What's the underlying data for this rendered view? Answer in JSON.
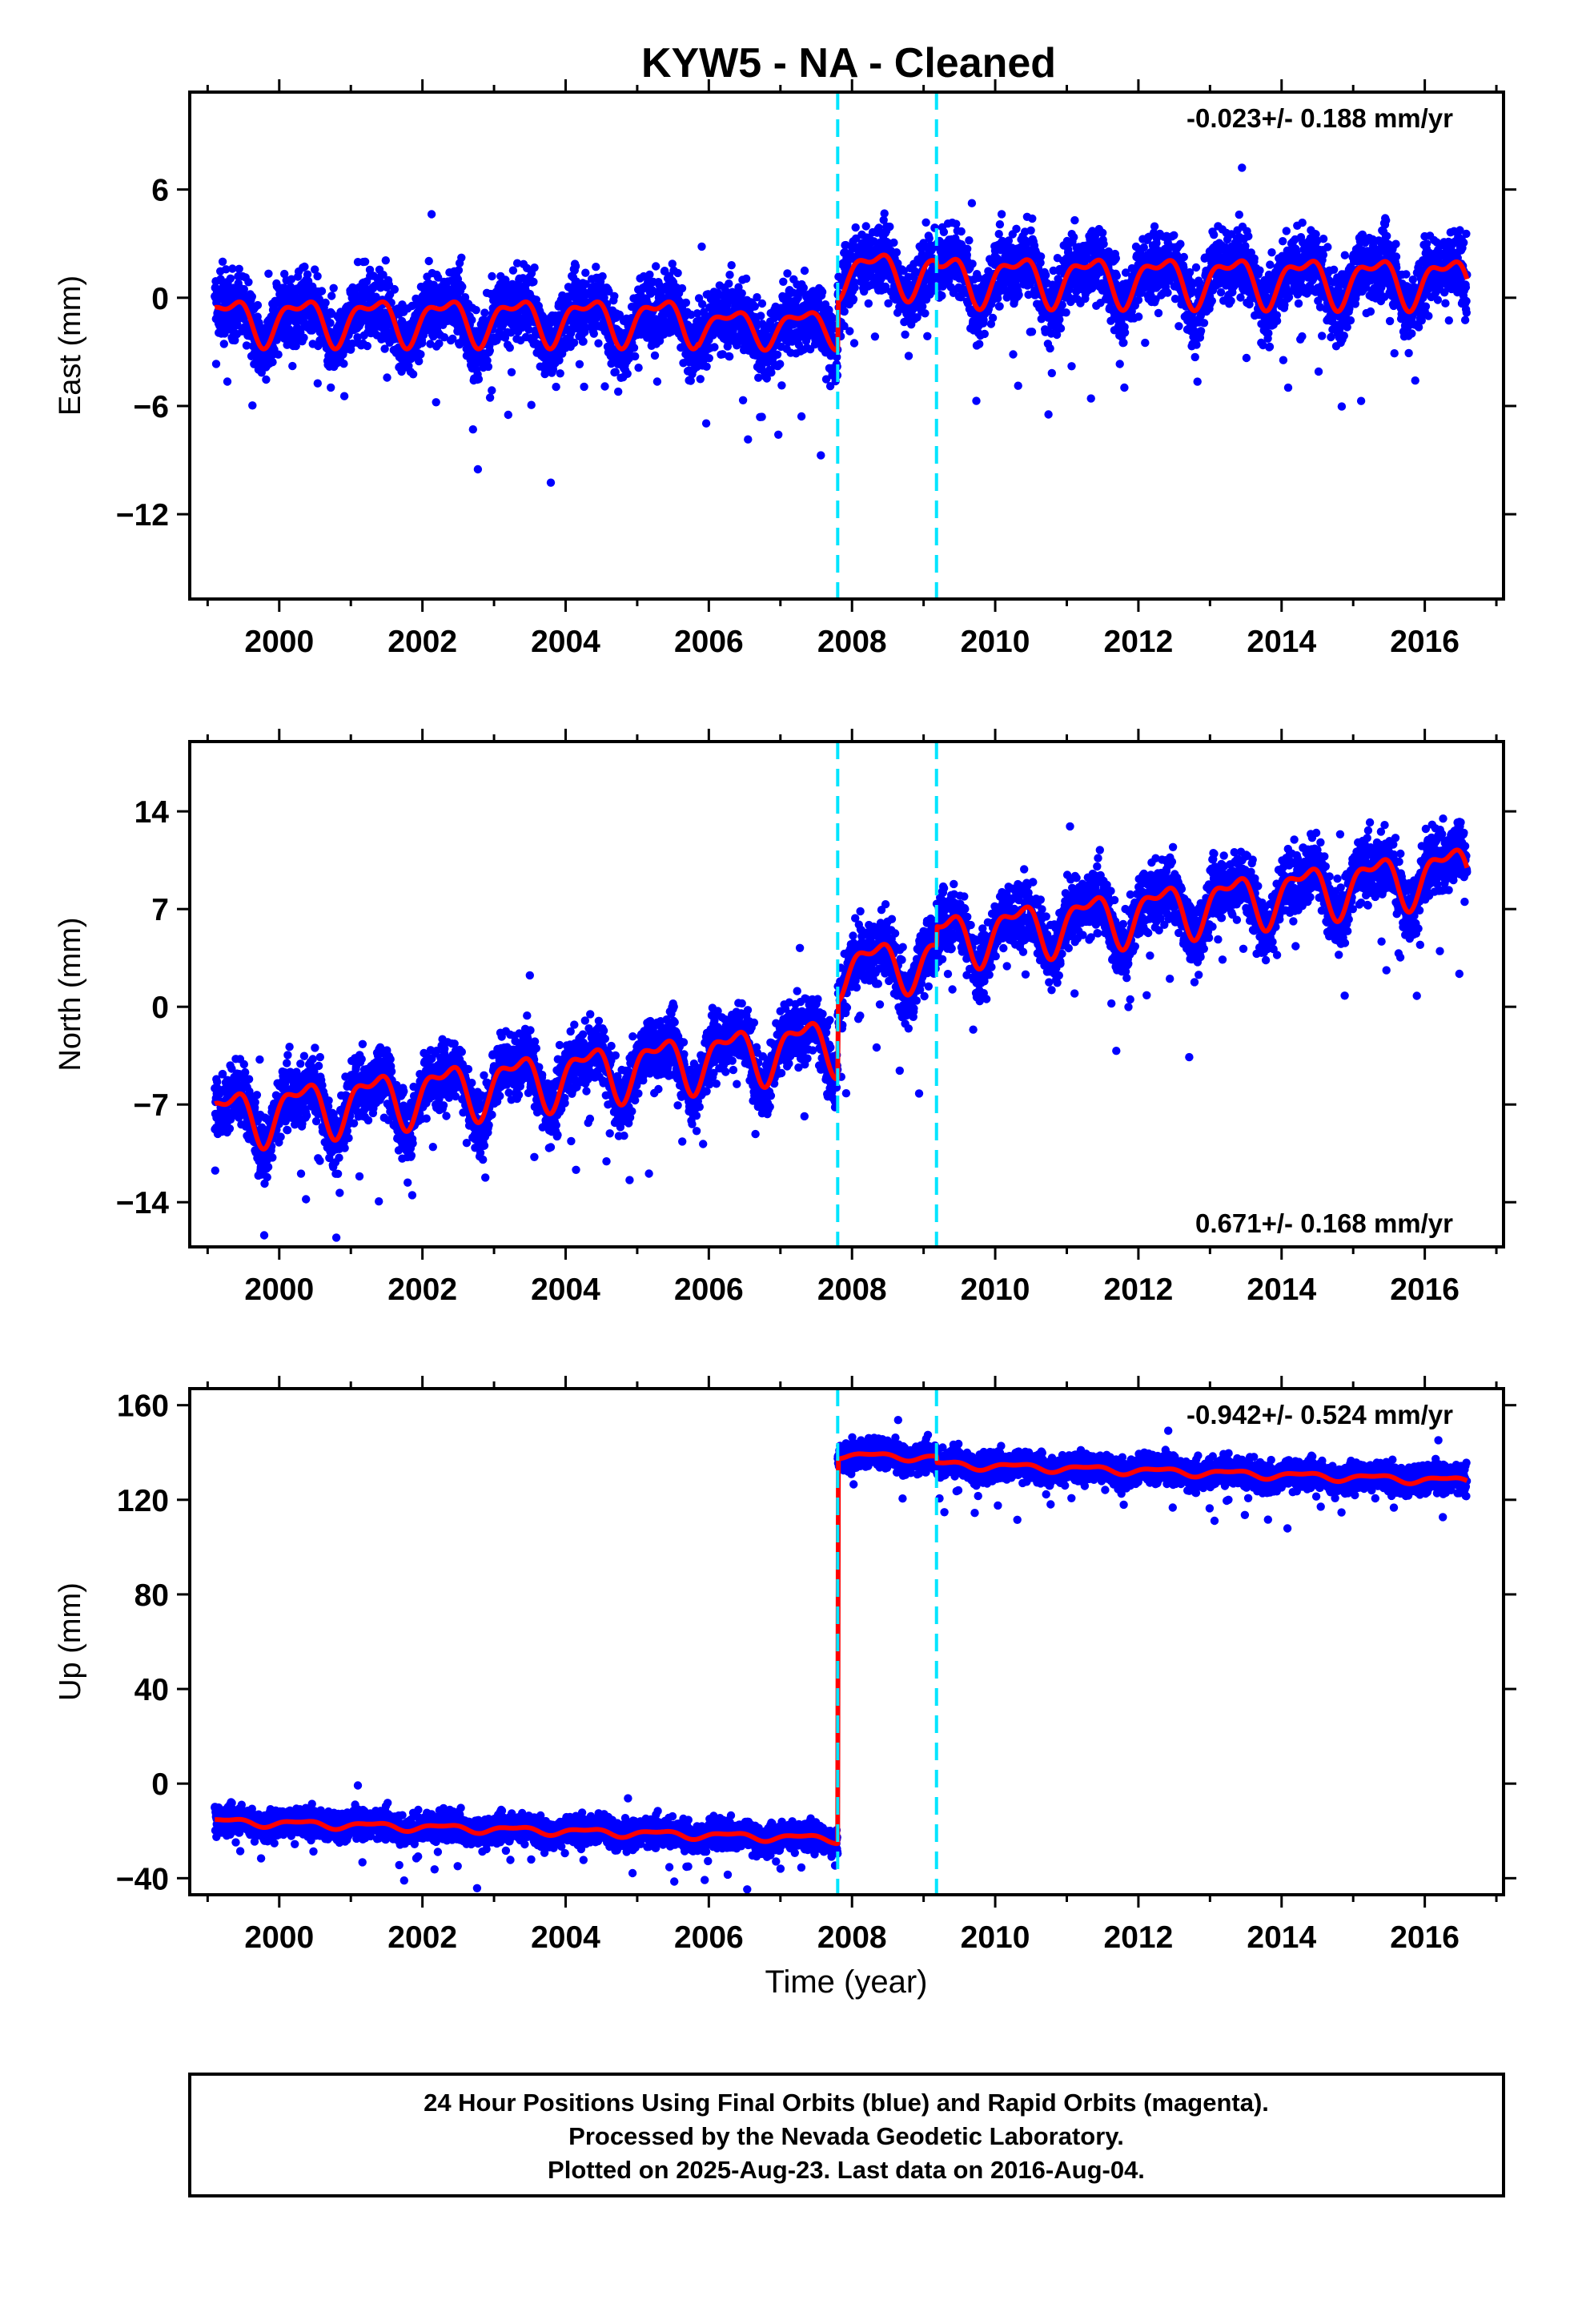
{
  "chart_data": {
    "type": "scatter",
    "title": "KYW5  - NA - Cleaned",
    "xlabel": "Time (year)",
    "xlim": [
      1998.75,
      2017.1
    ],
    "xticks": [
      2000,
      2002,
      2004,
      2006,
      2008,
      2010,
      2012,
      2014,
      2016
    ],
    "colors": {
      "observations": "#0000ff",
      "model": "#ff0000",
      "breaks": "#00e5ff",
      "frame": "#000000"
    },
    "breaks": [
      2007.8,
      2009.18
    ],
    "data_range": [
      1999.1,
      2016.59
    ],
    "panels": [
      {
        "ylabel": "East (mm)",
        "ylim": [
          -16.7,
          11.4
        ],
        "yticks": [
          6,
          0,
          -6,
          -12
        ],
        "rate": "-0.023+/- 0.188 mm/yr",
        "rate_position": "top-right",
        "series": [
          {
            "name": "24 Hour Positions",
            "kind": "points"
          },
          {
            "name": "Model fit",
            "kind": "line"
          }
        ],
        "model_segments": [
          {
            "x0": 1999.1,
            "x1": 2005.85,
            "offset": -1.2,
            "amplitude": 1.5,
            "slope": 0.0
          },
          {
            "x0": 2005.85,
            "x1": 2007.8,
            "offset": -1.6,
            "amplitude": 1.2,
            "slope": 0.0
          },
          {
            "x0": 2007.8,
            "x1": 2009.18,
            "offset": 1.4,
            "amplitude": 1.5,
            "slope": 0.0
          },
          {
            "x0": 2009.18,
            "x1": 2016.59,
            "offset": 1.1,
            "amplitude": 1.6,
            "slope": -0.02
          }
        ],
        "scatter_sd": 1.6
      },
      {
        "ylabel": "North (mm)",
        "ylim": [
          -17.2,
          19.0
        ],
        "yticks": [
          14,
          7,
          0,
          -7,
          -14
        ],
        "rate": "0.671+/- 0.168 mm/yr",
        "rate_position": "bottom-right",
        "series": [
          {
            "name": "24 Hour Positions",
            "kind": "points"
          },
          {
            "name": "Model fit",
            "kind": "line"
          }
        ],
        "model_segments": [
          {
            "x0": 1999.1,
            "x1": 2007.8,
            "offset": -8.0,
            "amplitude": 2.4,
            "slope": 0.63,
            "ref": 1999.1
          },
          {
            "x0": 2007.8,
            "x1": 2009.18,
            "offset": 2.7,
            "amplitude": 2.2,
            "slope": 0.55,
            "ref": 2007.8
          },
          {
            "x0": 2009.18,
            "x1": 2016.59,
            "offset": 4.8,
            "amplitude": 2.3,
            "slope": 0.68,
            "ref": 2009.18
          }
        ],
        "scatter_sd": 1.9
      },
      {
        "ylabel": "Up (mm)",
        "ylim": [
          -47,
          167
        ],
        "yticks": [
          160,
          120,
          80,
          40,
          0,
          -40
        ],
        "rate": "-0.942+/- 0.524 mm/yr",
        "rate_position": "top-right",
        "series": [
          {
            "name": "24 Hour Positions",
            "kind": "points"
          },
          {
            "name": "Model fit",
            "kind": "line"
          }
        ],
        "model_segments": [
          {
            "x0": 1999.1,
            "x1": 2007.8,
            "offset": -16,
            "amplitude": 1.8,
            "slope": -0.85,
            "ref": 1999.1
          },
          {
            "x0": 2007.8,
            "x1": 2009.18,
            "offset": 139,
            "amplitude": 1.6,
            "slope": -0.9,
            "ref": 2007.8
          },
          {
            "x0": 2009.18,
            "x1": 2016.59,
            "offset": 135,
            "amplitude": 1.8,
            "slope": -0.95,
            "ref": 2009.18
          }
        ],
        "scatter_sd": 5.0
      }
    ]
  },
  "footer": {
    "line1": "24 Hour Positions Using Final Orbits (blue) and Rapid Orbits (magenta).",
    "line2": "Processed by the Nevada Geodetic Laboratory.",
    "line3": "Plotted on 2025-Aug-23. Last data on 2016-Aug-04."
  }
}
